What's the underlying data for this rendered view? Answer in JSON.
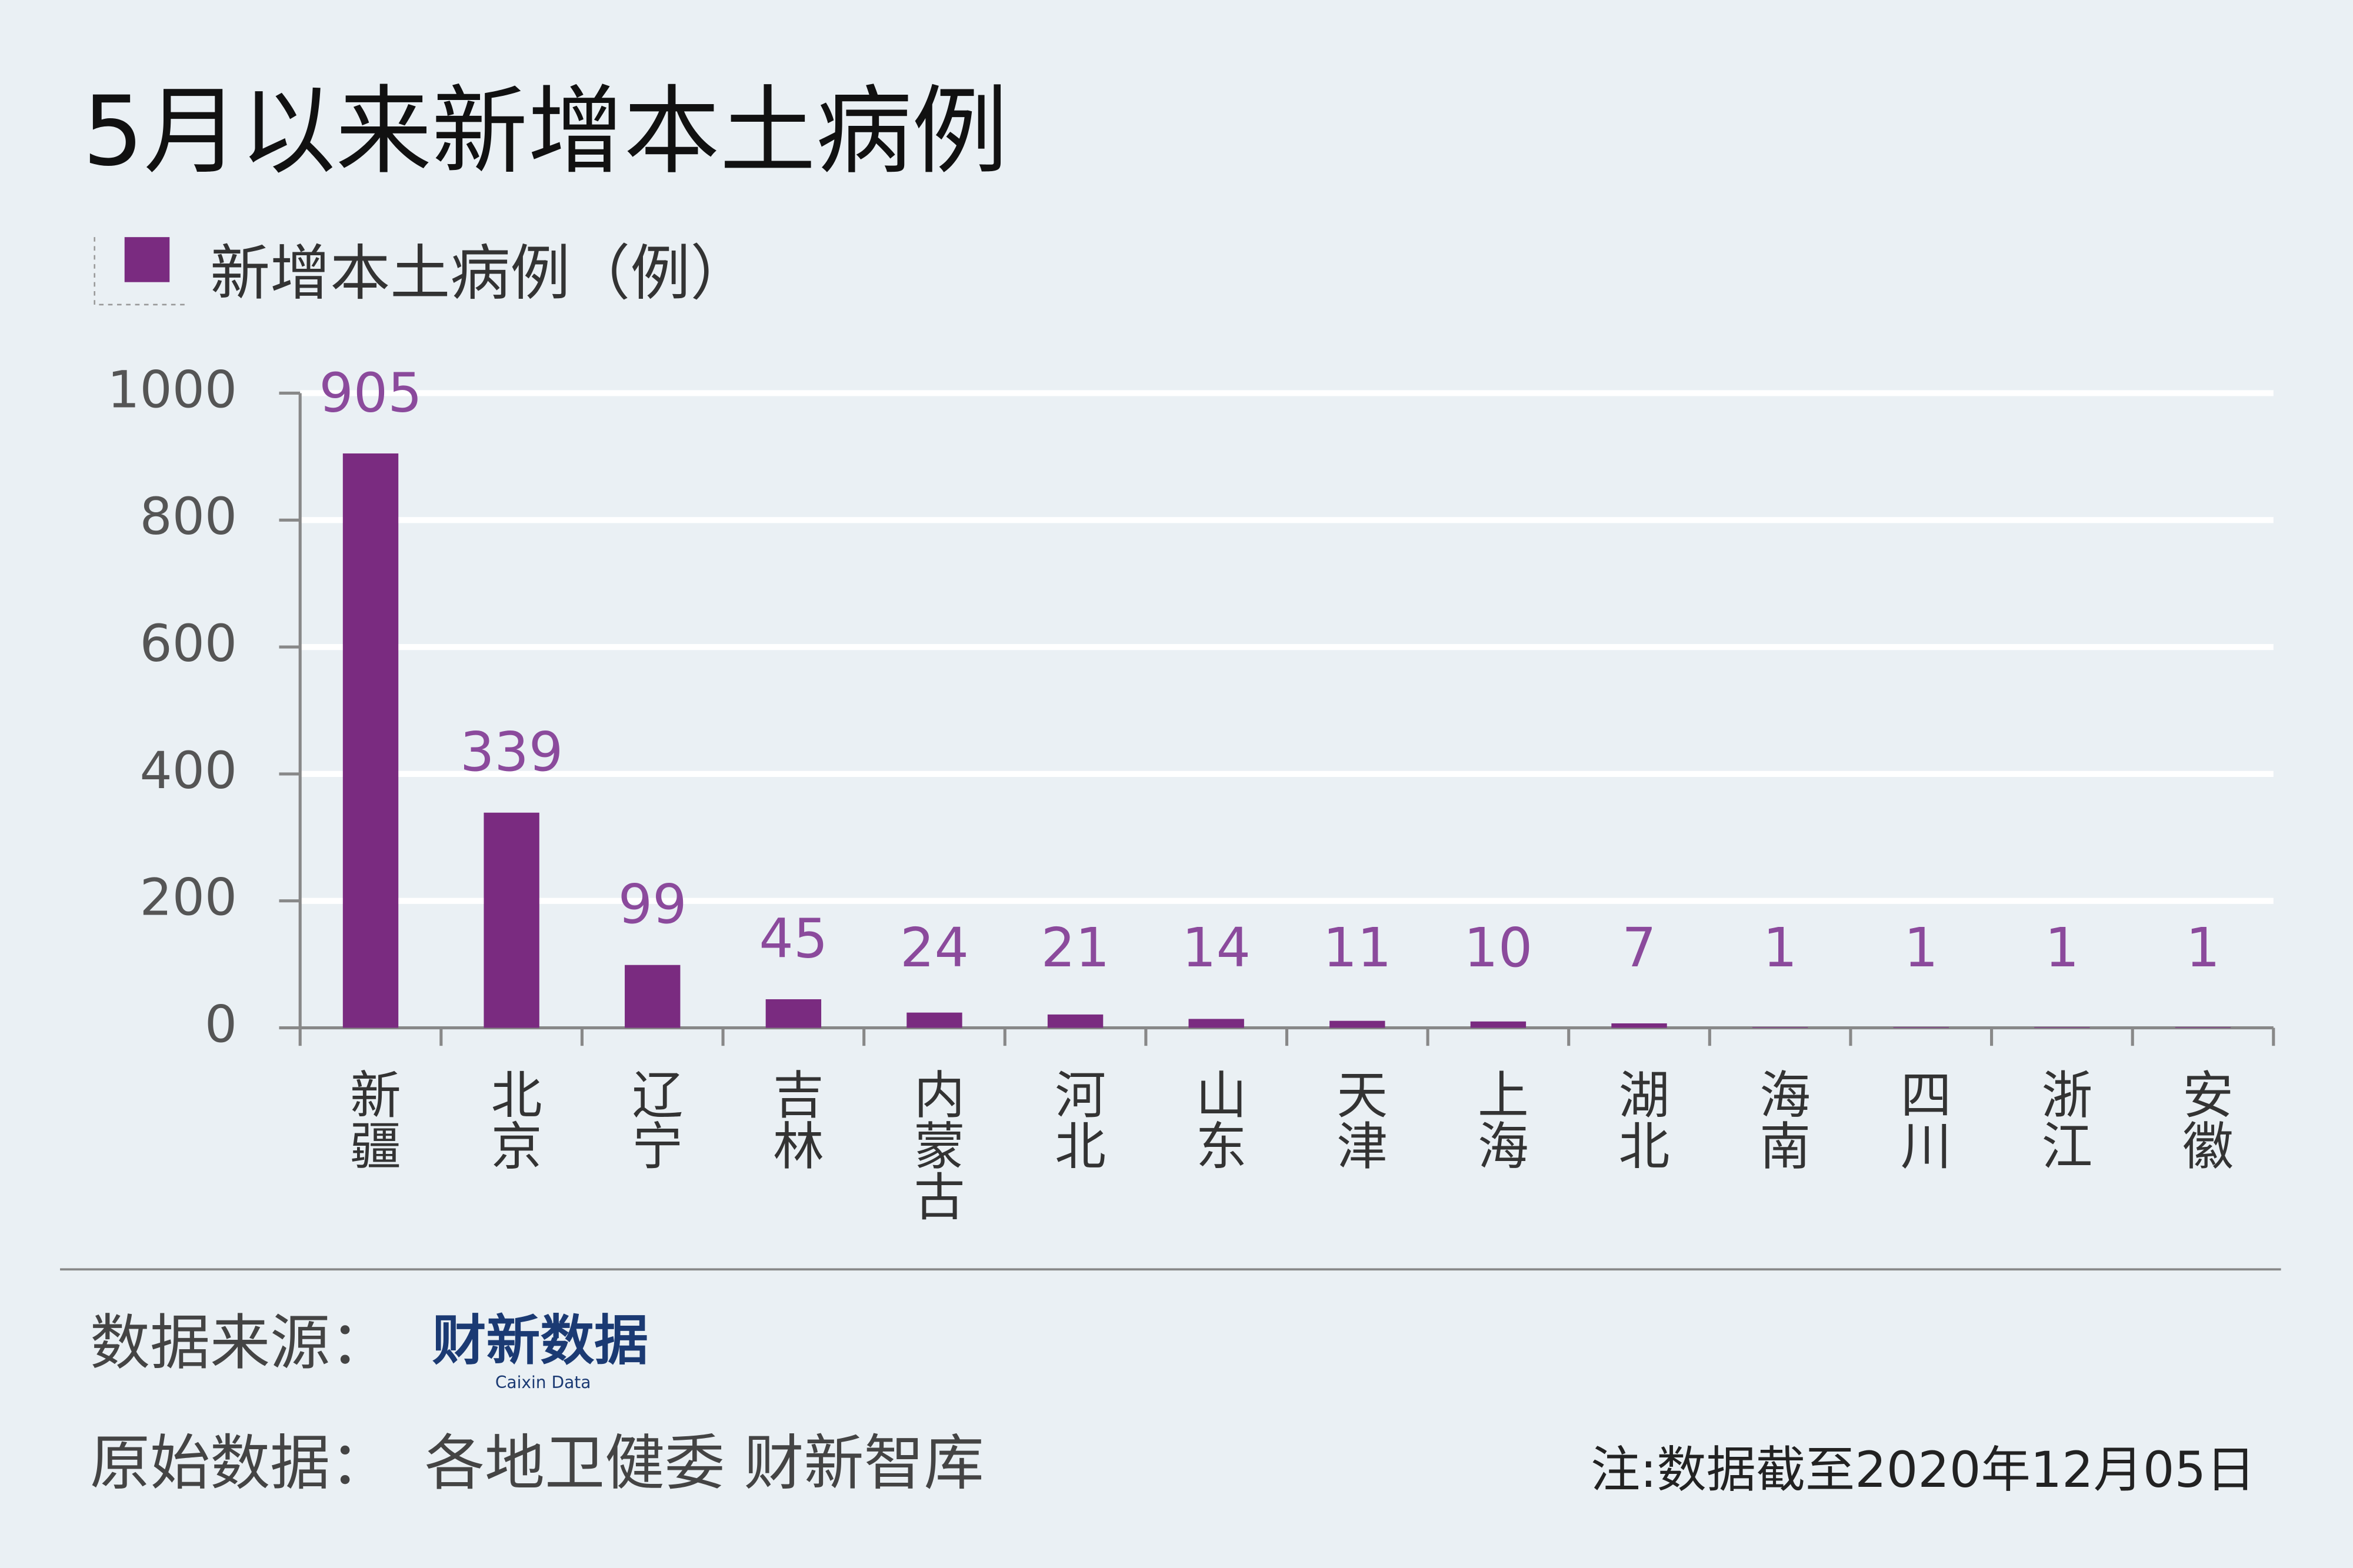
{
  "chart_data": {
    "type": "bar",
    "title": "5月以来新增本土病例",
    "categories": [
      "新疆",
      "北京",
      "辽宁",
      "吉林",
      "内蒙古",
      "河北",
      "山东",
      "天津",
      "上海",
      "湖北",
      "海南",
      "四川",
      "浙江",
      "安徽"
    ],
    "series": [
      {
        "name": "新增本土病例（例）",
        "color": "#7a2b80",
        "values": [
          905,
          339,
          99,
          45,
          24,
          21,
          14,
          11,
          10,
          7,
          1,
          1,
          1,
          1
        ]
      }
    ],
    "ylim": [
      0,
      1000
    ],
    "yticks": [
      0,
      200,
      400,
      600,
      800,
      1000
    ],
    "grid": true
  },
  "footer": {
    "source_label": "数据来源：",
    "source_logo": "财新数据",
    "source_logo_sub": "Caixin Data",
    "original_label": "原始数据：",
    "original": "各地卫健委 财新智库",
    "note": "注:数据截至2020年12月05日"
  }
}
